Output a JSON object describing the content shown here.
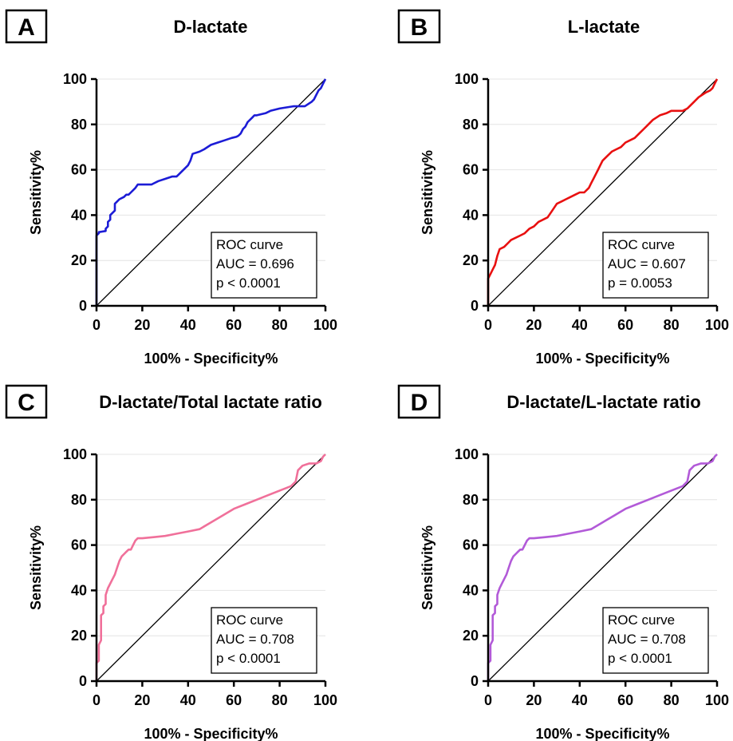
{
  "chart_data": [
    {
      "panel": "A",
      "type": "line",
      "title": "D-lactate",
      "xlabel": "100% - Specificity%",
      "ylabel": "Sensitivity%",
      "xlim": [
        0,
        100
      ],
      "ylim": [
        0,
        100
      ],
      "xticks": [
        0,
        20,
        40,
        60,
        80,
        100
      ],
      "yticks": [
        0,
        20,
        40,
        60,
        80,
        100
      ],
      "grid": "horizontal",
      "legend_position": "bottom-right",
      "color": "#1c1cd6",
      "annotation": [
        "ROC curve",
        "AUC = 0.696",
        "p < 0.0001"
      ],
      "reference_line": [
        [
          0,
          0
        ],
        [
          100,
          100
        ]
      ],
      "series": [
        {
          "x": [
            0,
            0,
            1,
            1,
            4,
            4,
            5,
            5,
            6,
            6,
            8,
            8,
            10,
            11,
            12,
            13,
            14,
            15,
            17,
            18,
            19,
            20,
            24,
            25,
            27,
            30,
            33,
            35,
            36,
            37,
            39,
            40,
            41,
            42,
            45,
            47,
            50,
            53,
            56,
            59,
            61,
            62,
            63,
            64,
            65,
            66,
            68,
            69,
            70,
            72,
            74,
            76,
            80,
            83,
            86,
            88,
            91,
            94,
            95,
            96,
            97,
            98,
            99,
            100
          ],
          "y": [
            0,
            31,
            32,
            32.5,
            33,
            34,
            35,
            37,
            38,
            40,
            42,
            45,
            47,
            47.5,
            48,
            49,
            49,
            50,
            52,
            53.5,
            53.5,
            53.5,
            53.5,
            54,
            55,
            56,
            57,
            57,
            58,
            59,
            61,
            62,
            64,
            67,
            68,
            69,
            71,
            72,
            73,
            74,
            74.5,
            75,
            76,
            78,
            79,
            81,
            83,
            84,
            84,
            84.5,
            85,
            86,
            87,
            87.5,
            88,
            88,
            88,
            90,
            91,
            93,
            95,
            96,
            98,
            100
          ]
        }
      ]
    },
    {
      "panel": "B",
      "type": "line",
      "title": "L-lactate",
      "xlabel": "100% - Specificity%",
      "ylabel": "Sensitivity%",
      "xlim": [
        0,
        100
      ],
      "ylim": [
        0,
        100
      ],
      "xticks": [
        0,
        20,
        40,
        60,
        80,
        100
      ],
      "yticks": [
        0,
        20,
        40,
        60,
        80,
        100
      ],
      "grid": "horizontal",
      "legend_position": "bottom-right",
      "color": "#e81010",
      "annotation": [
        "ROC curve",
        "AUC = 0.607",
        "p = 0.0053"
      ],
      "reference_line": [
        [
          0,
          0
        ],
        [
          100,
          100
        ]
      ],
      "series": [
        {
          "x": [
            0,
            0,
            1,
            2,
            3,
            4,
            5,
            7,
            9,
            10,
            12,
            14,
            16,
            18,
            20,
            22,
            24,
            26,
            28,
            30,
            32,
            34,
            36,
            38,
            40,
            42,
            44,
            45,
            46,
            47,
            48,
            49,
            50,
            52,
            54,
            56,
            58,
            60,
            62,
            64,
            66,
            68,
            70,
            72,
            75,
            78,
            80,
            82,
            85,
            87,
            88,
            90,
            92,
            95,
            97,
            98,
            99,
            100
          ],
          "y": [
            0,
            12,
            14,
            16,
            18,
            22,
            25,
            26,
            28,
            29,
            30,
            31,
            32,
            34,
            35,
            37,
            38,
            39,
            42,
            45,
            46,
            47,
            48,
            49,
            50,
            50,
            52,
            54,
            56,
            58,
            60,
            62,
            64,
            66,
            68,
            69,
            70,
            72,
            73,
            74,
            76,
            78,
            80,
            82,
            84,
            85,
            86,
            86,
            86,
            87,
            88,
            90,
            92,
            94,
            95,
            96,
            98,
            100
          ]
        }
      ]
    },
    {
      "panel": "C",
      "type": "line",
      "title": "D-lactate/Total lactate ratio",
      "xlabel": "100% - Specificity%",
      "ylabel": "Sensitivity%",
      "xlim": [
        0,
        100
      ],
      "ylim": [
        0,
        100
      ],
      "xticks": [
        0,
        20,
        40,
        60,
        80,
        100
      ],
      "yticks": [
        0,
        20,
        40,
        60,
        80,
        100
      ],
      "grid": "horizontal",
      "legend_position": "bottom-right",
      "color": "#f0709a",
      "annotation": [
        "ROC curve",
        "AUC = 0.708",
        "p < 0.0001"
      ],
      "reference_line": [
        [
          0,
          0
        ],
        [
          100,
          100
        ]
      ],
      "series": [
        {
          "x": [
            0,
            0,
            1,
            1,
            2,
            2,
            3,
            3,
            4,
            4,
            5,
            6,
            7,
            8,
            9,
            10,
            11,
            12,
            13,
            14,
            15,
            16,
            17,
            18,
            20,
            25,
            30,
            35,
            40,
            45,
            50,
            55,
            60,
            65,
            70,
            75,
            80,
            85,
            87,
            88,
            90,
            93,
            96,
            98,
            99,
            100
          ],
          "y": [
            0,
            8,
            9,
            16,
            18,
            29,
            30,
            33,
            34,
            38,
            41,
            43,
            45,
            47,
            50,
            53,
            55,
            56,
            57,
            58,
            58,
            60,
            62,
            63,
            63,
            63.5,
            64,
            65,
            66,
            67,
            70,
            73,
            76,
            78,
            80,
            82,
            84,
            86,
            88,
            93,
            95,
            96,
            96,
            97,
            99,
            100
          ]
        }
      ]
    },
    {
      "panel": "D",
      "type": "line",
      "title": "D-lactate/L-lactate ratio",
      "xlabel": "100% - Specificity%",
      "ylabel": "Sensitivity%",
      "xlim": [
        0,
        100
      ],
      "ylim": [
        0,
        100
      ],
      "xticks": [
        0,
        20,
        40,
        60,
        80,
        100
      ],
      "yticks": [
        0,
        20,
        40,
        60,
        80,
        100
      ],
      "grid": "horizontal",
      "legend_position": "bottom-right",
      "color": "#b25ad8",
      "annotation": [
        "ROC curve",
        "AUC = 0.708",
        "p < 0.0001"
      ],
      "reference_line": [
        [
          0,
          0
        ],
        [
          100,
          100
        ]
      ],
      "series": [
        {
          "x": [
            0,
            0,
            1,
            1,
            2,
            2,
            3,
            3,
            4,
            4,
            5,
            6,
            7,
            8,
            9,
            10,
            11,
            12,
            13,
            14,
            15,
            16,
            17,
            18,
            20,
            25,
            30,
            35,
            40,
            45,
            50,
            55,
            60,
            65,
            70,
            75,
            80,
            85,
            87,
            88,
            90,
            93,
            96,
            98,
            99,
            100
          ],
          "y": [
            0,
            8,
            9,
            16,
            18,
            29,
            30,
            33,
            34,
            38,
            41,
            43,
            45,
            47,
            50,
            53,
            55,
            56,
            57,
            58,
            58,
            60,
            62,
            63,
            63,
            63.5,
            64,
            65,
            66,
            67,
            70,
            73,
            76,
            78,
            80,
            82,
            84,
            86,
            88,
            93,
            95,
            96,
            96,
            97,
            99,
            100
          ]
        }
      ]
    }
  ]
}
